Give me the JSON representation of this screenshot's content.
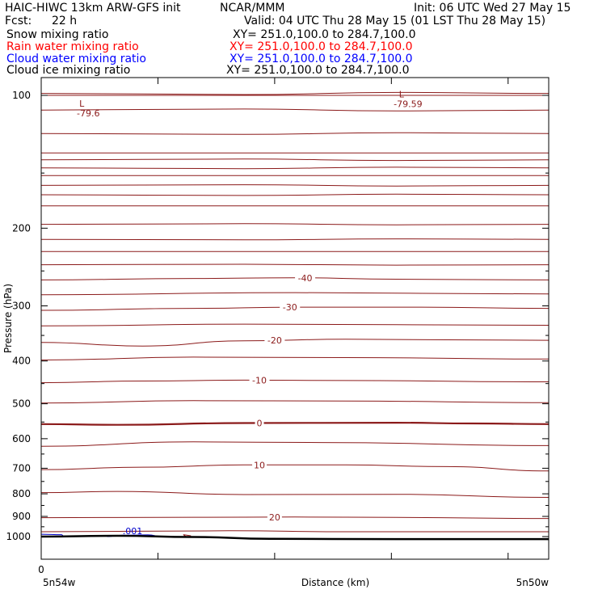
{
  "header": {
    "model": "HAIC-HIWC 13km ARW-GFS init",
    "org": "NCAR/MMM",
    "init": "Init: 06 UTC Wed 27 May 15",
    "fcst_label": "Fcst:",
    "fcst_value": "22 h",
    "valid": "Valid: 04 UTC Thu 28 May 15 (01 LST Thu 28 May 15)"
  },
  "fields": [
    {
      "name": "Snow mixing ratio",
      "xy": "XY= 251.0,100.0 to 284.7,100.0",
      "color": "#000000"
    },
    {
      "name": "Rain water mixing ratio",
      "xy": "XY= 251.0,100.0 to 284.7,100.0",
      "color": "#ff0000"
    },
    {
      "name": "Cloud water mixing ratio",
      "xy": "XY= 251.0,100.0 to 284.7,100.0",
      "color": "#0000ff"
    },
    {
      "name": "Cloud ice mixing ratio",
      "xy": "XY= 251.0,100.0 to 284.7,100.0",
      "color": "#000000"
    }
  ],
  "colors": {
    "isotherm": "#8b1a1a",
    "terrain": "#000000",
    "cloud_water": "#0000cc",
    "frame": "#000000"
  },
  "chart_data": {
    "type": "line",
    "ylabel": "Pressure (hPa)",
    "xlabel": "Distance (km)",
    "y_scale": "log",
    "yticks": [
      100,
      200,
      300,
      400,
      500,
      600,
      700,
      800,
      900,
      1000
    ],
    "y_tick_labels": [
      "100",
      "200",
      "300",
      "400",
      "500",
      "600",
      "700",
      "800",
      "900",
      "1000"
    ],
    "x_tick_label_start": "0",
    "x_endpoint_labels": [
      "5n54w",
      "5n50w"
    ],
    "isotherms": [
      {
        "label": "-40",
        "label_x": 0.52,
        "points": [
          [
            0,
            262
          ],
          [
            0.3,
            260
          ],
          [
            0.5,
            259
          ],
          [
            0.7,
            261
          ],
          [
            1,
            262
          ]
        ]
      },
      {
        "label": "-30",
        "label_x": 0.49,
        "points": [
          [
            0,
            307
          ],
          [
            0.3,
            304
          ],
          [
            0.5,
            302
          ],
          [
            0.75,
            302
          ],
          [
            1,
            304
          ]
        ]
      },
      {
        "label": "-20",
        "label_x": 0.46,
        "points": [
          [
            0,
            363
          ],
          [
            0.2,
            370
          ],
          [
            0.4,
            360
          ],
          [
            0.6,
            357
          ],
          [
            1,
            359
          ]
        ]
      },
      {
        "label": "-10",
        "label_x": 0.43,
        "points": [
          [
            0,
            448
          ],
          [
            0.2,
            444
          ],
          [
            0.4,
            442
          ],
          [
            0.6,
            443
          ],
          [
            1,
            446
          ]
        ]
      },
      {
        "label": "0",
        "label_x": 0.43,
        "points": [
          [
            0,
            556
          ],
          [
            0.15,
            558
          ],
          [
            0.4,
            553
          ],
          [
            0.7,
            552
          ],
          [
            0.85,
            554
          ],
          [
            1,
            556
          ]
        ]
      },
      {
        "label": "10",
        "label_x": 0.43,
        "points": [
          [
            0,
            705
          ],
          [
            0.2,
            696
          ],
          [
            0.4,
            688
          ],
          [
            0.6,
            688
          ],
          [
            0.8,
            694
          ],
          [
            1,
            710
          ]
        ]
      },
      {
        "label": "20",
        "label_x": 0.46,
        "points": [
          [
            0,
            906
          ],
          [
            0.3,
            904
          ],
          [
            0.5,
            903
          ],
          [
            0.7,
            905
          ],
          [
            1,
            910
          ]
        ]
      }
    ],
    "low_markers": [
      {
        "symbol": "L",
        "value": "-79.6",
        "x": 0.08,
        "pressure": 107
      },
      {
        "symbol": "L",
        "value": "-79.59",
        "x": 0.71,
        "pressure": 102
      }
    ],
    "cloud_water_contours": [
      {
        "label": ".001",
        "label_x": 0.18
      }
    ]
  }
}
